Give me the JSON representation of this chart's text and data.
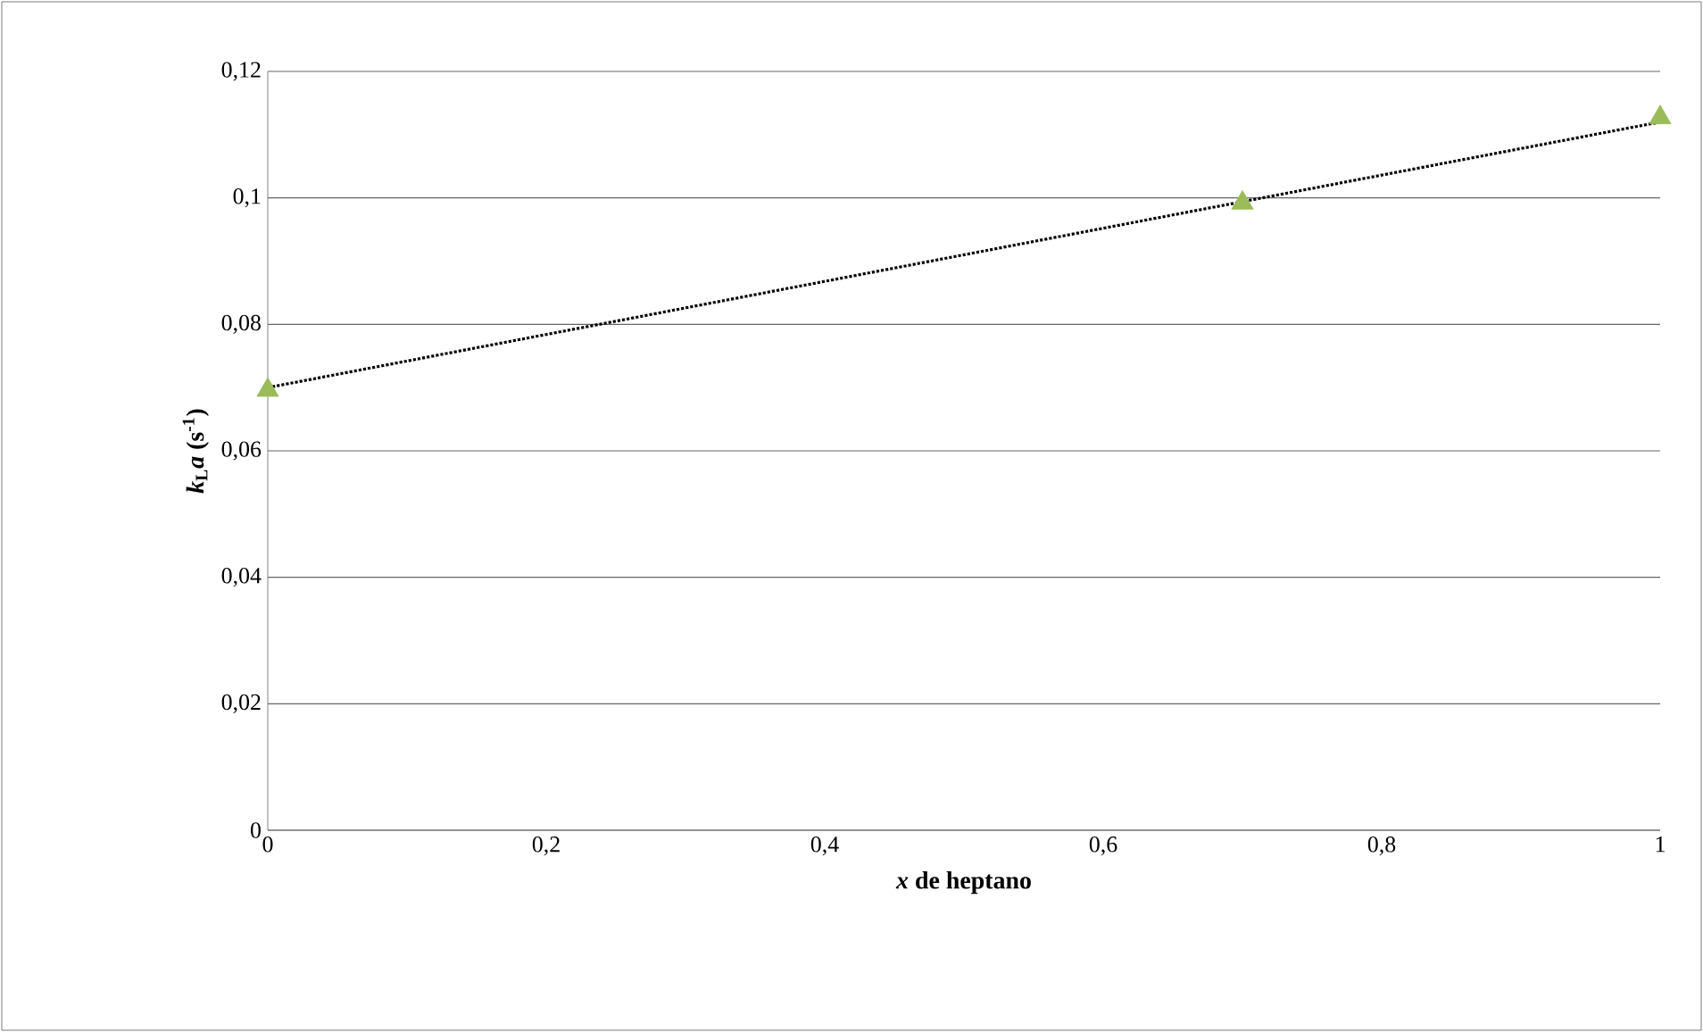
{
  "chart_data": {
    "type": "scatter",
    "xlabel": "*x* de heptano",
    "ylabel": "*k*$_{L}$*a* (s$^{-1}$)",
    "x": [
      0,
      0.7,
      1
    ],
    "series": [
      {
        "color": "#9bbb59",
        "marker": "triangle",
        "values": [
          0.0696,
          0.0992,
          0.1127
        ]
      },
      {
        "type": "line",
        "color": "#000000",
        "marker": "none",
        "line_style": "dotted",
        "x": [
          0,
          1
        ],
        "values": [
          0.07,
          0.112
        ]
      }
    ],
    "xlim": [
      0,
      1
    ],
    "xticks": [
      {
        "value": 0,
        "label": "0"
      },
      {
        "value": 0.2,
        "label": "0,2"
      },
      {
        "value": 0.4,
        "label": "0,4"
      },
      {
        "value": 0.6,
        "label": "0,6"
      },
      {
        "value": 0.8,
        "label": "0,8"
      },
      {
        "value": 1,
        "label": "1"
      }
    ],
    "ylim": [
      0,
      0.12
    ],
    "yticks": [
      {
        "value": 0,
        "label": "0"
      },
      {
        "value": 0.02,
        "label": "0,02"
      },
      {
        "value": 0.04,
        "label": "0,04"
      },
      {
        "value": 0.06,
        "label": "0,06"
      },
      {
        "value": 0.08,
        "label": "0,08"
      },
      {
        "value": 0.1,
        "label": "0,1"
      },
      {
        "value": 0.12,
        "label": "0,12"
      }
    ],
    "grid": "y"
  }
}
